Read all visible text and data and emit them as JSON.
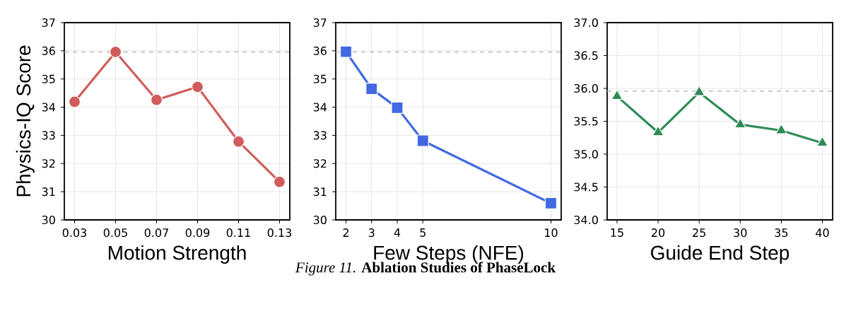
{
  "chart_data": [
    {
      "type": "line",
      "xlabel": "Motion Strength",
      "ylabel": "Physics-IQ Score",
      "x": [
        0.03,
        0.05,
        0.07,
        0.09,
        0.11,
        0.13
      ],
      "xlim": [
        0.025,
        0.135
      ],
      "xticks": [
        0.03,
        0.05,
        0.07,
        0.09,
        0.11,
        0.13
      ],
      "ylim": [
        30,
        37
      ],
      "yticks": [
        30,
        31,
        32,
        33,
        34,
        35,
        36,
        37
      ],
      "grid": true,
      "marker": "circle",
      "series": [
        {
          "color": "#d05c5c",
          "values": [
            34.19,
            35.96,
            34.26,
            34.72,
            32.78,
            31.35
          ]
        }
      ],
      "ref_lines": [
        {
          "axis": "y",
          "value": 35.96,
          "color": "#bbbbbb",
          "line_style": "dashed"
        }
      ]
    },
    {
      "type": "line",
      "xlabel": "Few Steps (NFE)",
      "x": [
        2,
        3,
        4,
        5,
        10
      ],
      "xlim": [
        1.6,
        10.4
      ],
      "xticks": [
        2,
        3,
        4,
        5,
        10
      ],
      "ylim": [
        30,
        37
      ],
      "yticks": [
        30,
        31,
        32,
        33,
        34,
        35,
        36,
        37
      ],
      "grid": true,
      "marker": "square",
      "series": [
        {
          "color": "#4169e1",
          "values": [
            35.97,
            34.65,
            33.98,
            32.81,
            30.59
          ]
        }
      ],
      "ref_lines": [
        {
          "axis": "y",
          "value": 35.96,
          "color": "#bbbbbb",
          "line_style": "dashed"
        }
      ],
      "annotations": [
        "*Figure 11.* **Ablation Studies of PhaseLock**"
      ]
    },
    {
      "type": "line",
      "xlabel": "Guide End Step",
      "x": [
        15,
        20,
        25,
        30,
        35,
        40
      ],
      "xlim": [
        13.8,
        41.25
      ],
      "xticks": [
        15,
        20,
        25,
        30,
        35,
        40
      ],
      "ylim": [
        34,
        37
      ],
      "yticks": [
        {
          "value": 34,
          "label": "34.0"
        },
        {
          "value": 34.5,
          "label": "34.5"
        },
        {
          "value": 35,
          "label": "35.0"
        },
        {
          "value": 35.5,
          "label": "35.5"
        },
        {
          "value": 36,
          "label": "36.0"
        },
        {
          "value": 36.5,
          "label": "36.5"
        },
        {
          "value": 37,
          "label": "37.0"
        }
      ],
      "grid": true,
      "marker": "triangle",
      "series": [
        {
          "color": "#2e8b57",
          "values": [
            35.88,
            35.33,
            35.94,
            35.45,
            35.36,
            35.17
          ]
        }
      ],
      "ref_lines": [
        {
          "axis": "y",
          "value": 35.96,
          "color": "#bbbbbb",
          "line_style": "dashed"
        }
      ]
    }
  ]
}
